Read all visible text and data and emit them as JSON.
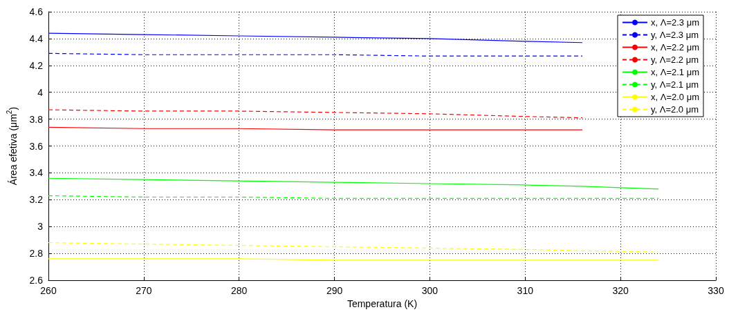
{
  "chart_data": {
    "type": "line",
    "xlabel": "Temperatura (K)",
    "ylabel": "Área efetiva (μm$^{2}$)",
    "x": [
      260,
      270,
      280,
      290,
      300,
      310,
      316,
      324
    ],
    "series": [
      {
        "name": "x, Λ=2.3 μm",
        "color": "#0000ff",
        "line_style": "solid",
        "values": [
          4.44,
          4.43,
          4.42,
          4.41,
          4.4,
          4.38,
          4.37,
          null
        ]
      },
      {
        "name": "y, Λ=2.3 μm",
        "color": "#0000ff",
        "line_style": "dashed",
        "values": [
          4.29,
          4.28,
          4.28,
          4.28,
          4.27,
          4.27,
          4.27,
          null
        ]
      },
      {
        "name": "x, Λ=2.2 μm",
        "color": "#ff0000",
        "line_style": "solid",
        "values": [
          3.74,
          3.73,
          3.73,
          3.72,
          3.72,
          3.72,
          3.72,
          null
        ]
      },
      {
        "name": "y, Λ=2.2 μm",
        "color": "#ff0000",
        "line_style": "dashed",
        "values": [
          3.87,
          3.86,
          3.86,
          3.85,
          3.84,
          3.82,
          3.81,
          null
        ]
      },
      {
        "name": "x, Λ=2.1 μm",
        "color": "#00ff00",
        "line_style": "solid",
        "values": [
          3.36,
          3.35,
          3.34,
          3.33,
          3.32,
          3.31,
          3.3,
          3.28
        ]
      },
      {
        "name": "y, Λ=2.1 μm",
        "color": "#00ff00",
        "line_style": "dashed",
        "values": [
          3.23,
          3.22,
          3.22,
          3.21,
          3.21,
          3.21,
          3.21,
          3.21
        ]
      },
      {
        "name": "x, Λ=2.0 μm",
        "color": "#ffff00",
        "line_style": "solid",
        "values": [
          2.76,
          2.76,
          2.76,
          2.75,
          2.75,
          2.75,
          2.75,
          2.75
        ]
      },
      {
        "name": "y, Λ=2.0 μm",
        "color": "#ffff00",
        "line_style": "dashed",
        "values": [
          2.88,
          2.87,
          2.86,
          2.85,
          2.84,
          2.83,
          2.82,
          2.81
        ]
      }
    ],
    "xlim": [
      260,
      330
    ],
    "xticks": [
      260,
      270,
      280,
      290,
      300,
      310,
      320,
      330
    ],
    "ylim": [
      2.6,
      4.6
    ],
    "yticks": [
      2.6,
      2.8,
      3,
      3.2,
      3.4,
      3.6,
      3.8,
      4,
      4.2,
      4.4,
      4.6
    ],
    "grid": true,
    "legend": "top right",
    "marker": "none"
  }
}
